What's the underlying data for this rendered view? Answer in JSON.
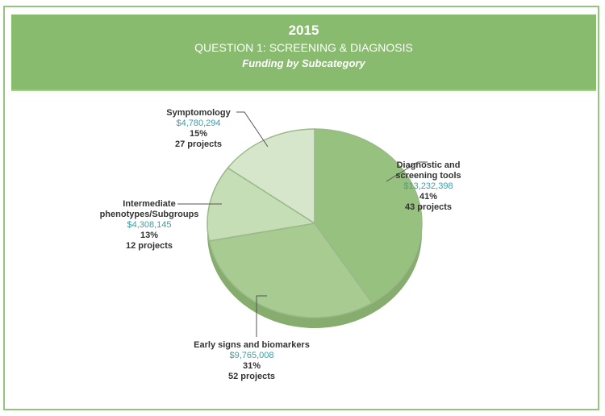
{
  "header": {
    "year": "2015",
    "question": "QUESTION 1:  SCREENING & DIAGNOSIS",
    "subtitle": "Funding by Subcategory"
  },
  "chart_data": {
    "type": "pie",
    "title": "2015 QUESTION 1: SCREENING & DIAGNOSIS - Funding by Subcategory",
    "slices": [
      {
        "name": "Diagnostic and screening tools",
        "amount": "$13,232,398",
        "percent_label": "41%",
        "percent": 41,
        "projects": "43 projects",
        "color": "#96c17f"
      },
      {
        "name": "Early signs and biomarkers",
        "amount": "$9,765,008",
        "percent_label": "31%",
        "percent": 31,
        "projects": "52 projects",
        "color": "#a8cb92"
      },
      {
        "name": "Intermediate phenotypes/Subgroups",
        "amount": "$4,308,145",
        "percent_label": "13%",
        "percent": 13,
        "projects": "12 projects",
        "color": "#c5deb5"
      },
      {
        "name": "Symptomology",
        "amount": "$4,780,294",
        "percent_label": "15%",
        "percent": 15,
        "projects": "27 projects",
        "color": "#d6e6cb"
      }
    ],
    "side_color": "#86ad6e"
  }
}
